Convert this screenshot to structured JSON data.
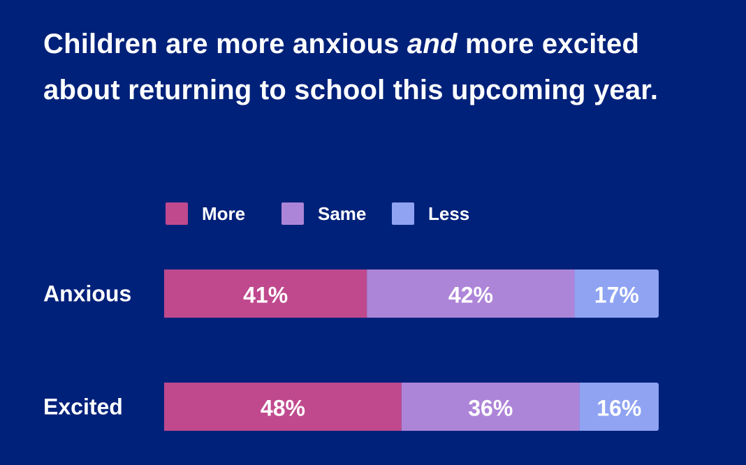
{
  "chart_data": {
    "type": "bar",
    "orientation": "horizontal",
    "stacked": true,
    "title_parts": [
      "Children are more anxious ",
      "and",
      " more excited about returning to school this upcoming year."
    ],
    "categories": [
      "Anxious",
      "Excited"
    ],
    "series": [
      {
        "name": "More",
        "values": [
          41,
          48
        ],
        "color": "#c0498e"
      },
      {
        "name": "Same",
        "values": [
          42,
          36
        ],
        "color": "#ad85d8"
      },
      {
        "name": "Less",
        "values": [
          17,
          16
        ],
        "color": "#8fa3f2"
      }
    ],
    "value_suffix": "%",
    "xlim": [
      0,
      100
    ],
    "legend": "top",
    "grid": false
  }
}
